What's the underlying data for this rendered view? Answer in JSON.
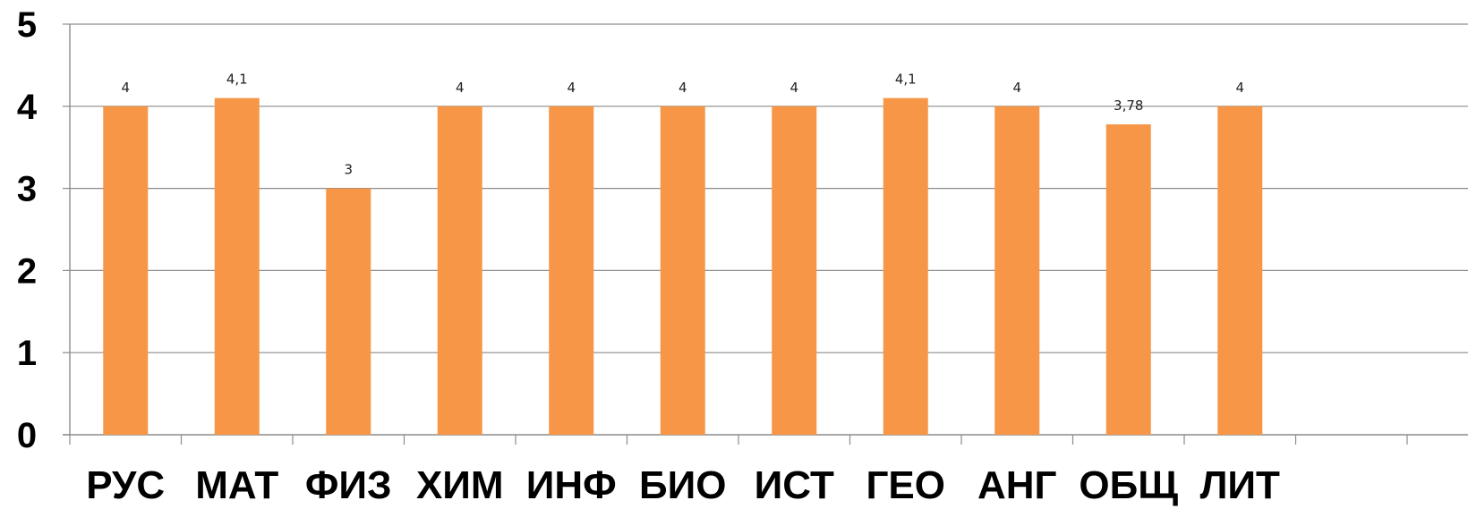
{
  "chart_data": {
    "type": "bar",
    "categories": [
      "РУС",
      "МАТ",
      "ФИЗ",
      "ХИМ",
      "ИНФ",
      "БИО",
      "ИСТ",
      "ГЕО",
      "АНГ",
      "ОБЩ",
      "ЛИТ"
    ],
    "values": [
      4,
      4.1,
      3,
      4,
      4,
      4,
      4,
      4.1,
      4,
      3.78,
      4
    ],
    "data_labels": [
      "4",
      "4,1",
      "3",
      "4",
      "4",
      "4",
      "4",
      "4,1",
      "4",
      "3,78",
      "4"
    ],
    "y_ticks": [
      "0",
      "1",
      "2",
      "3",
      "4",
      "5"
    ],
    "ylim": [
      0,
      5
    ],
    "slots": 12,
    "grid": true,
    "legend": "none",
    "bar_color": "#F79646",
    "title": "",
    "xlabel": "",
    "ylabel": ""
  }
}
